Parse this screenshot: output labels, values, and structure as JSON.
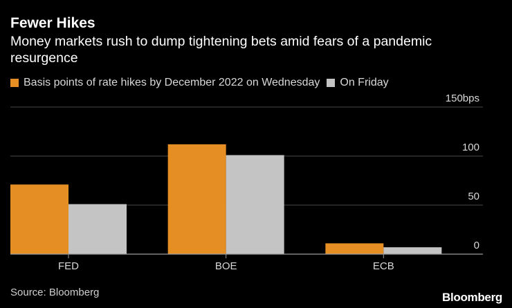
{
  "title": "Fewer Hikes",
  "subtitle": "Money markets rush to dump tightening bets amid fears of a pandemic resurgence",
  "legend": [
    {
      "label": "Basis points of rate hikes by December 2022 on Wednesday",
      "color": "#e48e24"
    },
    {
      "label": "On Friday",
      "color": "#c4c4c4"
    }
  ],
  "source": "Source: Bloomberg",
  "brand": "Bloomberg",
  "colors": {
    "background": "#000000",
    "grid": "#4a4a4a",
    "axis": "#9a9a9a",
    "tick_text": "#d9d9d9"
  },
  "chart_data": {
    "type": "bar",
    "title": "Fewer Hikes",
    "categories": [
      "FED",
      "BOE",
      "ECB"
    ],
    "series": [
      {
        "name": "Basis points of rate hikes by December 2022 on Wednesday",
        "values": [
          71,
          112,
          11
        ]
      },
      {
        "name": "On Friday",
        "values": [
          51,
          101,
          7
        ]
      }
    ],
    "ylim": [
      0,
      150
    ],
    "yticks": [
      0,
      50,
      100,
      150
    ],
    "ytick_labels": [
      "0",
      "50",
      "100",
      "150bps"
    ],
    "ylabel": "bps",
    "xlabel": "",
    "grid": true
  }
}
